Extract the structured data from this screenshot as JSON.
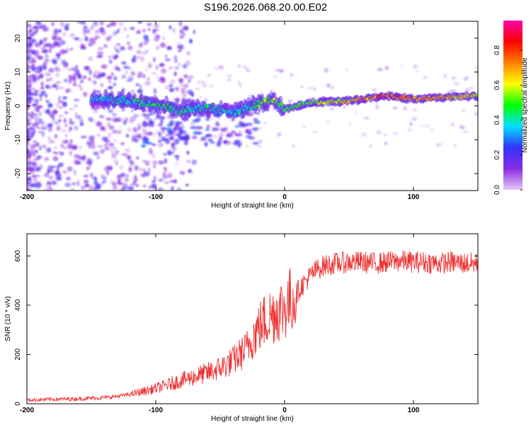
{
  "page_title": "S196.2026.068.20.00.E02",
  "chart_data": [
    {
      "type": "heatmap",
      "title": "S196.2026.068.20.00.E02",
      "xlabel": "Height of straight line (km)",
      "ylabel": "Frequency (Hz)",
      "xlim": [
        -200,
        150
      ],
      "ylim": [
        -25,
        25
      ],
      "xticks": [
        -200,
        -100,
        0,
        100
      ],
      "xtick_labels": [
        "-200",
        "-100",
        "0",
        "100"
      ],
      "yticks": [
        -20,
        -10,
        0,
        10,
        20
      ],
      "ytick_labels": [
        "-20",
        "-10",
        "0",
        "10",
        "20"
      ],
      "colorbar": {
        "label": "Normalized spectral amplitude",
        "range": [
          0.0,
          0.97
        ],
        "ticks": [
          0.0,
          0.2,
          0.4,
          0.6,
          0.8
        ],
        "tick_labels": [
          "0.0",
          "0.2",
          "0.4",
          "0.6",
          "0.8"
        ],
        "colors": [
          "#e8c8f8",
          "#8a2be2",
          "#3333ff",
          "#00e0ff",
          "#00ff00",
          "#ffff00",
          "#ff8000",
          "#ff0000",
          "#ff00aa"
        ]
      },
      "ridge": {
        "description": "dominant frequency track",
        "x": [
          -150,
          -120,
          -100,
          -80,
          -60,
          -40,
          -25,
          -10,
          0,
          20,
          50,
          80,
          100,
          120,
          150
        ],
        "y": [
          2,
          1.5,
          0.5,
          -1.5,
          -0.5,
          -2,
          0,
          2,
          -1,
          1,
          1.5,
          3,
          2,
          2.5,
          3
        ],
        "amplitude": [
          0.4,
          0.45,
          0.5,
          0.45,
          0.45,
          0.4,
          0.45,
          0.6,
          0.5,
          0.55,
          0.7,
          0.85,
          0.8,
          0.75,
          0.7
        ]
      }
    },
    {
      "type": "line",
      "xlabel": "Height of straight line (km)",
      "ylabel": "SNR (10 * v/v)",
      "xlim": [
        -200,
        150
      ],
      "ylim": [
        0,
        690
      ],
      "xticks": [
        -200,
        -100,
        0,
        100
      ],
      "xtick_labels": [
        "-200",
        "-100",
        "0",
        "100"
      ],
      "yticks": [
        0,
        200,
        400,
        600
      ],
      "ytick_labels": [
        "0",
        "200",
        "400",
        "600"
      ],
      "series": [
        {
          "name": "SNR",
          "color": "#ee3333",
          "x": [
            -200,
            -180,
            -160,
            -140,
            -130,
            -120,
            -110,
            -100,
            -90,
            -80,
            -70,
            -60,
            -50,
            -40,
            -30,
            -25,
            -20,
            -15,
            -10,
            -5,
            0,
            5,
            10,
            15,
            20,
            25,
            30,
            40,
            50,
            60,
            70,
            80,
            90,
            100,
            110,
            120,
            130,
            140,
            150
          ],
          "y": [
            15,
            18,
            20,
            25,
            30,
            38,
            50,
            62,
            78,
            95,
            110,
            125,
            145,
            175,
            220,
            270,
            310,
            340,
            360,
            380,
            390,
            420,
            455,
            490,
            520,
            545,
            560,
            570,
            575,
            575,
            570,
            575,
            580,
            575,
            575,
            570,
            575,
            570,
            570
          ]
        }
      ]
    }
  ]
}
